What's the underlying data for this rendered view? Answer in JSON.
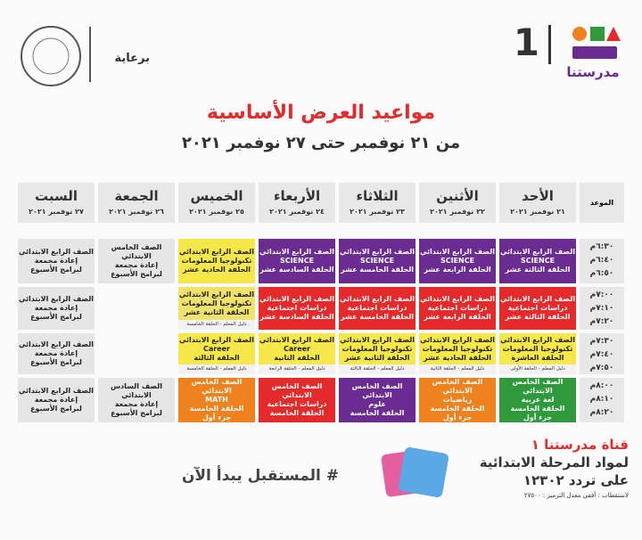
{
  "header": {
    "sponsor": "برعاية",
    "logo_number": "1",
    "logo_text": "مدرستنا"
  },
  "title": "مواعيد العرض الأساسية",
  "subtitle": "من ٢١ نوفمبر حتى ٢٧ نوفمبر ٢٠٢١",
  "table": {
    "time_header": "الموعد",
    "days": [
      {
        "name": "الأحد",
        "date": "٢١ نوفمبر ٢٠٢١"
      },
      {
        "name": "الأثنين",
        "date": "٢٢ نوفمبر ٢٠٢١"
      },
      {
        "name": "الثلاثاء",
        "date": "٢٣ نوفمبر ٢٠٢١"
      },
      {
        "name": "الأربعاء",
        "date": "٢٤ نوفمبر ٢٠٢١"
      },
      {
        "name": "الخميس",
        "date": "٢٥ نوفمبر ٢٠٢١"
      },
      {
        "name": "الجمعة",
        "date": "٢٦ نوفمبر ٢٠٢١"
      },
      {
        "name": "السبت",
        "date": "٢٧ نوفمبر ٢٠٢١"
      }
    ],
    "rows": [
      {
        "times": [
          "٦:٣٠م",
          "٦:٤٠م",
          "٦:٥٠م"
        ],
        "cells": [
          {
            "color": "#6a2c91",
            "lines": [
              "الصف الرابع الابتدائي",
              "SCIENCE",
              "الحلقة الثالثة عشر"
            ]
          },
          {
            "color": "#6a2c91",
            "lines": [
              "الصف الرابع الابتدائي",
              "SCIENCE",
              "الحلقة الرابعة عشر"
            ]
          },
          {
            "color": "#6a2c91",
            "lines": [
              "الصف الرابع الابتدائي",
              "SCIENCE",
              "الحلقة الخامسة عشر"
            ]
          },
          {
            "color": "#6a2c91",
            "lines": [
              "الصف الرابع الابتدائي",
              "SCIENCE",
              "الحلقة السادسة عشر"
            ]
          },
          {
            "color": "#f7e84a",
            "lines": [
              "الصف الرابع الابتدائي",
              "تكنولوجيا المعلومات",
              "الحلقة الحادية عشر"
            ]
          },
          {
            "color": "#e6e6e6",
            "lines": [
              "الصف الخامس الابتدائي",
              "إعادة مجمعة",
              "لبرامج الأسبوع"
            ]
          },
          {
            "color": "#e6e6e6",
            "lines": [
              "الصف الرابع الابتدائي",
              "إعادة مجمعة",
              "لبرامج الأسبوع"
            ]
          }
        ]
      },
      {
        "times": [
          "٧:٠٠م",
          "٧:١٠م",
          "٧:٢٠م"
        ],
        "cells": [
          {
            "color": "#e42a2a",
            "lines": [
              "الصف الرابع الابتدائي",
              "دراسات اجتماعية",
              "الحلقة الثالثة عشر"
            ]
          },
          {
            "color": "#e42a2a",
            "lines": [
              "الصف الرابع الابتدائي",
              "دراسات اجتماعية",
              "الحلقة الرابعة عشر"
            ]
          },
          {
            "color": "#e42a2a",
            "lines": [
              "الصف الرابع الابتدائي",
              "دراسات اجتماعية",
              "الحلقة الخامسة عشر"
            ]
          },
          {
            "color": "#e42a2a",
            "lines": [
              "الصف الرابع الابتدائي",
              "دراسات اجتماعية",
              "الحلقة السادسة عشر"
            ]
          },
          {
            "color": "#f0e26a",
            "lines": [
              "الصف الرابع الابتدائي",
              "تكنولوجيا المعلومات",
              "الحلقة الثانية عشر"
            ],
            "footer": "دليل المعلم - الحلقة الخامسة"
          },
          null,
          {
            "color": "#e6e6e6",
            "lines": [
              "الصف الرابع الابتدائي",
              "إعادة مجمعة",
              "لبرامج الأسبوع"
            ]
          }
        ]
      },
      {
        "times": [
          "٧:٣٠م",
          "٧:٤٠م",
          "٧:٥٠م"
        ],
        "cells": [
          {
            "color": "#f7e84a",
            "lines": [
              "الصف الرابع الابتدائي",
              "تكنولوجيا المعلومات",
              "الحلقة العاشرة"
            ],
            "footer": "دليل المعلم - الحلقة الأولى"
          },
          {
            "color": "#f7e84a",
            "lines": [
              "الصف الرابع الابتدائي",
              "تكنولوجيا المعلومات",
              "الحلقة الحادية عشر"
            ],
            "footer": "دليل المعلم - الحلقة الثانية"
          },
          {
            "color": "#f7e84a",
            "lines": [
              "الصف الرابع الابتدائي",
              "تكنولوجيا المعلومات",
              "الحلقة الثانية عشر"
            ],
            "footer": "دليل المعلم - الحلقة الثالثة"
          },
          {
            "color": "#f7e84a",
            "lines": [
              "الصف الرابع الابتدائي",
              "Career",
              "الحلقة الثانية"
            ],
            "footer": "دليل المعلم - الحلقة الرابعة"
          },
          {
            "color": "#f7e84a",
            "lines": [
              "الصف الرابع الابتدائي",
              "Career",
              "الحلقة الثالثة"
            ],
            "footer": "دليل المعلم - الحلقة الخامسة"
          },
          null,
          {
            "color": "#e6e6e6",
            "lines": [
              "الصف الرابع الابتدائي",
              "إعادة مجمعة",
              "لبرامج الأسبوع"
            ]
          }
        ]
      },
      {
        "times": [
          "٨:٠٠م",
          "٨:١٠م",
          "٨:٢٠م"
        ],
        "cells": [
          {
            "color": "#2e9a3c",
            "lines": [
              "الصف الخامس الابتدائي",
              "لغة عربية",
              "الحلقة الخامسة",
              "جزء أول"
            ]
          },
          {
            "color": "#f0821e",
            "lines": [
              "الصف الخامس الابتدائي",
              "رياضيات",
              "الحلقة الخامسة",
              "جزء أول"
            ]
          },
          {
            "color": "#6a2c91",
            "lines": [
              "الصف الخامس الابتدائي",
              "علوم",
              "الحلقة الخامسة"
            ]
          },
          {
            "color": "#e42a2a",
            "lines": [
              "الصف الخامس الابتدائي",
              "دراسات اجتماعية",
              "الحلقة الخامسة"
            ]
          },
          {
            "color": "#f0821e",
            "lines": [
              "الصف الخامس الابتدائي",
              "MATH",
              "الحلقة الخامسة",
              "جزء أول"
            ]
          },
          {
            "color": "#e6e6e6",
            "lines": [
              "الصف السادس الابتدائي",
              "إعادة مجمعة",
              "لبرامج الأسبوع"
            ]
          },
          {
            "color": "#e6e6e6",
            "lines": [
              "الصف الرابع الابتدائي",
              "إعادة مجمعة",
              "لبرامج الأسبوع"
            ]
          }
        ]
      }
    ]
  },
  "footer": {
    "channel": "قناة مدرستنا ١",
    "subject": "لمواد المرحلة الابتدائية",
    "frequency": "على تردد ١٢٣٠٢",
    "polarization": "لاستقطاب : أفقي معدل الترميز : ٢٧٥٠٠",
    "slogan": "# المستقبل يبدأ الآن"
  }
}
